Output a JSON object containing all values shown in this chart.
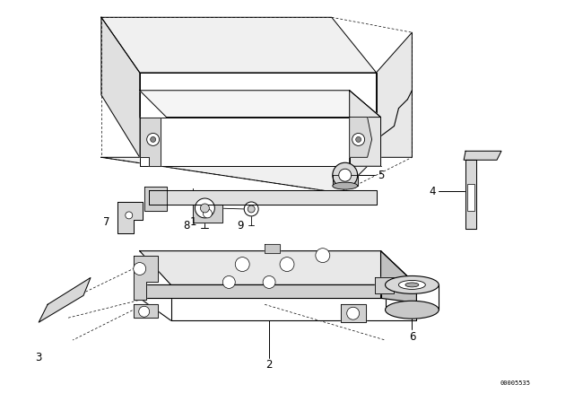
{
  "bg_color": "#ffffff",
  "line_color": "#000000",
  "fig_width": 6.4,
  "fig_height": 4.48,
  "dpi": 100,
  "diagram_id": "00005535"
}
